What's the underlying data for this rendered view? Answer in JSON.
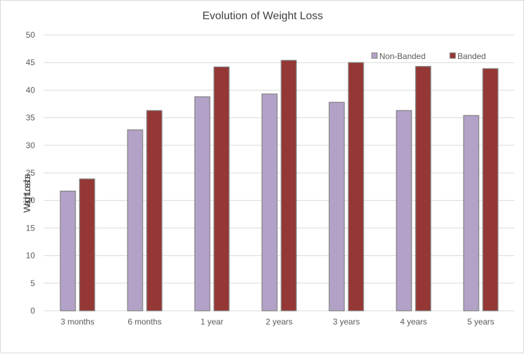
{
  "chart_data": {
    "type": "bar",
    "title": "Evolution of Weight Loss",
    "ylabel": "Weight Loss lbs",
    "xlabel": "",
    "categories": [
      "3 months",
      "6 months",
      "1 year",
      "2 years",
      "3 years",
      "4 years",
      "5 years"
    ],
    "series": [
      {
        "name": "Non-Banded",
        "color": "#b3a2c7",
        "stroke": "#7f7f7f",
        "values": [
          21.7,
          32.8,
          38.8,
          39.3,
          37.8,
          36.3,
          35.4
        ]
      },
      {
        "name": "Banded",
        "color": "#953735",
        "stroke": "#7f7f7f",
        "values": [
          23.9,
          36.3,
          44.2,
          45.4,
          45.0,
          44.3,
          43.9
        ]
      }
    ],
    "ylim": [
      0,
      50
    ],
    "yticks": [
      0,
      5,
      10,
      15,
      20,
      25,
      30,
      35,
      40,
      45,
      50
    ],
    "grid": true,
    "legend_position": "top-right",
    "gridline_color": "#d9d9d9"
  }
}
